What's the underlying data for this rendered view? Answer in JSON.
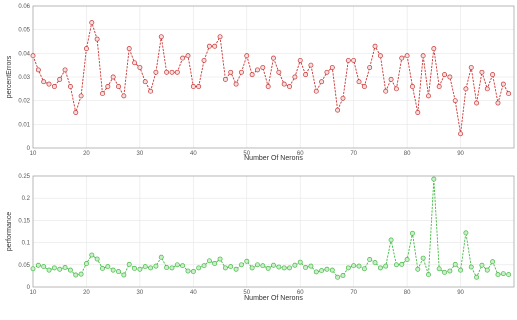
{
  "chart_data": [
    {
      "type": "line",
      "xlabel": "Number Of Nerons",
      "ylabel": "percentErrors",
      "xlim": [
        10,
        100
      ],
      "ylim": [
        0,
        0.06
      ],
      "xticks": [
        10,
        20,
        30,
        40,
        50,
        60,
        70,
        80,
        90
      ],
      "xtick_labels": [
        "10",
        "20",
        "30",
        "40",
        "50",
        "60",
        "70",
        "80",
        "90"
      ],
      "yticks": [
        0,
        0.01,
        0.02,
        0.03,
        0.04,
        0.05,
        0.06
      ],
      "ytick_labels": [
        "0",
        "0.01",
        "0.02",
        "0.03",
        "0.04",
        "0.05",
        "0.06"
      ],
      "grid": true,
      "color": "#cc3333",
      "marker_fill": "#f4dede",
      "series": [
        {
          "x": [
            10,
            11,
            12,
            13,
            14,
            15,
            16,
            17,
            18,
            19,
            20,
            21,
            22,
            23,
            24,
            25,
            26,
            27,
            28,
            29,
            30,
            31,
            32,
            33,
            34,
            35,
            36,
            37,
            38,
            39,
            40,
            41,
            42,
            43,
            44,
            45,
            46,
            47,
            48,
            49,
            50,
            51,
            52,
            53,
            54,
            55,
            56,
            57,
            58,
            59,
            60,
            61,
            62,
            63,
            64,
            65,
            66,
            67,
            68,
            69,
            70,
            71,
            72,
            73,
            74,
            75,
            76,
            77,
            78,
            79,
            80,
            81,
            82,
            83,
            84,
            85,
            86,
            87,
            88,
            89,
            90,
            91,
            92,
            93,
            94,
            95,
            96,
            97,
            98,
            99
          ],
          "values": [
            0.039,
            0.033,
            0.028,
            0.027,
            0.026,
            0.029,
            0.033,
            0.026,
            0.015,
            0.022,
            0.042,
            0.053,
            0.046,
            0.023,
            0.026,
            0.03,
            0.026,
            0.022,
            0.042,
            0.036,
            0.034,
            0.028,
            0.024,
            0.032,
            0.047,
            0.032,
            0.032,
            0.032,
            0.038,
            0.039,
            0.026,
            0.026,
            0.037,
            0.043,
            0.043,
            0.047,
            0.029,
            0.032,
            0.027,
            0.032,
            0.039,
            0.031,
            0.033,
            0.034,
            0.026,
            0.038,
            0.032,
            0.027,
            0.026,
            0.03,
            0.037,
            0.031,
            0.035,
            0.024,
            0.028,
            0.032,
            0.034,
            0.016,
            0.021,
            0.037,
            0.037,
            0.028,
            0.026,
            0.034,
            0.043,
            0.039,
            0.024,
            0.029,
            0.025,
            0.038,
            0.039,
            0.026,
            0.015,
            0.039,
            0.022,
            0.042,
            0.026,
            0.031,
            0.03,
            0.02,
            0.006,
            0.025,
            0.034,
            0.019,
            0.032,
            0.025,
            0.031,
            0.019,
            0.027,
            0.023
          ]
        }
      ]
    },
    {
      "type": "line",
      "xlabel": "Number Of Nerons",
      "ylabel": "performance",
      "xlim": [
        10,
        100
      ],
      "ylim": [
        0,
        0.25
      ],
      "xticks": [
        10,
        20,
        30,
        40,
        50,
        60,
        70,
        80,
        90
      ],
      "xtick_labels": [
        "10",
        "20",
        "30",
        "40",
        "50",
        "60",
        "70",
        "80",
        "90"
      ],
      "yticks": [
        0,
        0.05,
        0.1,
        0.15,
        0.2,
        0.25
      ],
      "ytick_labels": [
        "0",
        "0.05",
        "0.1",
        "0.15",
        "0.2",
        "0.25"
      ],
      "grid": true,
      "color": "#44bb44",
      "marker_fill": "#c9eec9",
      "series": [
        {
          "x": [
            10,
            11,
            12,
            13,
            14,
            15,
            16,
            17,
            18,
            19,
            20,
            21,
            22,
            23,
            24,
            25,
            26,
            27,
            28,
            29,
            30,
            31,
            32,
            33,
            34,
            35,
            36,
            37,
            38,
            39,
            40,
            41,
            42,
            43,
            44,
            45,
            46,
            47,
            48,
            49,
            50,
            51,
            52,
            53,
            54,
            55,
            56,
            57,
            58,
            59,
            60,
            61,
            62,
            63,
            64,
            65,
            66,
            67,
            68,
            69,
            70,
            71,
            72,
            73,
            74,
            75,
            76,
            77,
            78,
            79,
            80,
            81,
            82,
            83,
            84,
            85,
            86,
            87,
            88,
            89,
            90,
            91,
            92,
            93,
            94,
            95,
            96,
            97,
            98,
            99
          ],
          "values": [
            0.041,
            0.049,
            0.046,
            0.038,
            0.043,
            0.04,
            0.044,
            0.038,
            0.027,
            0.029,
            0.053,
            0.072,
            0.063,
            0.042,
            0.046,
            0.038,
            0.035,
            0.027,
            0.051,
            0.042,
            0.04,
            0.046,
            0.043,
            0.047,
            0.067,
            0.044,
            0.043,
            0.05,
            0.048,
            0.036,
            0.035,
            0.043,
            0.048,
            0.059,
            0.053,
            0.063,
            0.043,
            0.046,
            0.04,
            0.05,
            0.058,
            0.043,
            0.05,
            0.048,
            0.042,
            0.049,
            0.045,
            0.043,
            0.043,
            0.049,
            0.056,
            0.044,
            0.047,
            0.034,
            0.037,
            0.04,
            0.038,
            0.022,
            0.026,
            0.043,
            0.048,
            0.047,
            0.041,
            0.062,
            0.055,
            0.043,
            0.047,
            0.106,
            0.05,
            0.051,
            0.062,
            0.121,
            0.04,
            0.065,
            0.028,
            0.243,
            0.041,
            0.033,
            0.036,
            0.051,
            0.038,
            0.122,
            0.045,
            0.022,
            0.049,
            0.038,
            0.057,
            0.028,
            0.03,
            0.028
          ]
        }
      ]
    }
  ]
}
